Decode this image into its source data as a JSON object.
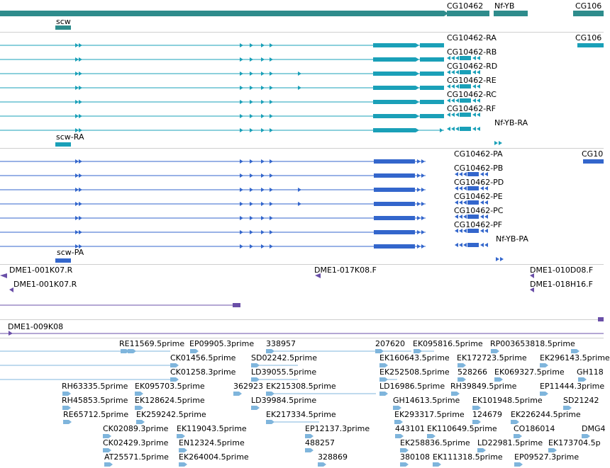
{
  "colors": {
    "gene": "#2e8c8c",
    "transcript": "#1aa0b8",
    "protein": "#3366cc",
    "clone": "#6a4fa8",
    "est": "#7fb5dc",
    "divider": "#cfcfcf"
  },
  "gene_track": {
    "labels": [
      "scw",
      "CG10462",
      "Nf-YB",
      "CG106"
    ]
  },
  "transcript_track": {
    "labels": [
      "CG10462-RA",
      "CG106",
      "CG10462-RB",
      "CG10462-RD",
      "CG10462-RE",
      "CG10462-RC",
      "CG10462-RF",
      "Nf-YB-RA",
      "scw-RA"
    ]
  },
  "protein_track": {
    "labels": [
      "CG10462-PA",
      "CG10",
      "CG10462-PB",
      "CG10462-PD",
      "CG10462-PE",
      "CG10462-PC",
      "CG10462-PF",
      "Nf-YB-PA",
      "scw-PA"
    ]
  },
  "clone_track": {
    "labels": [
      "DME1-001K07.R",
      "DME1-017K08.F",
      "DME1-010D08.F",
      "DME1-001K07.R",
      "DME1-018H16.F",
      "DME1-009K08"
    ]
  },
  "est_track": {
    "labels": [
      "RE11569.5prime",
      "EP09905.3prime",
      "338957",
      "207620",
      "EK095816.5prime",
      "RP003653818.5prime",
      "CK01456.5prime",
      "SD02242.5prime",
      "EK160643.5prime",
      "EK172723.5prime",
      "EK296143.5prime",
      "CK01258.3prime",
      "LD39055.5prime",
      "EK252508.5prime",
      "528266",
      "EK069327.5prime",
      "GH118",
      "RH63335.5prime",
      "EK095703.5prime",
      "362923",
      "EK215308.5prime",
      "LD16986.5prime",
      "RH39849.5prime",
      "EP11444.3prime",
      "RH45853.5prime",
      "EK128624.5prime",
      "LD39984.5prime",
      "GH14613.5prime",
      "EK101948.5prime",
      "SD21242",
      "RE65712.5prime",
      "EK259242.5prime",
      "EK217334.5prime",
      "EK293317.5prime",
      "124679",
      "EK226244.5prime",
      "CK02089.3prime",
      "EK119043.5prime",
      "EP12137.3prime",
      "443101",
      "EK110649.5prime",
      "CO186014",
      "DMG4",
      "CK02429.3prime",
      "EN12324.5prime",
      "488257",
      "EK258836.5prime",
      "LD22981.5prime",
      "EK173704.5p",
      "AT25571.5prime",
      "EK264004.5prime",
      "328869",
      "380108",
      "EK111318.5prime",
      "EP09527.3prime"
    ]
  }
}
